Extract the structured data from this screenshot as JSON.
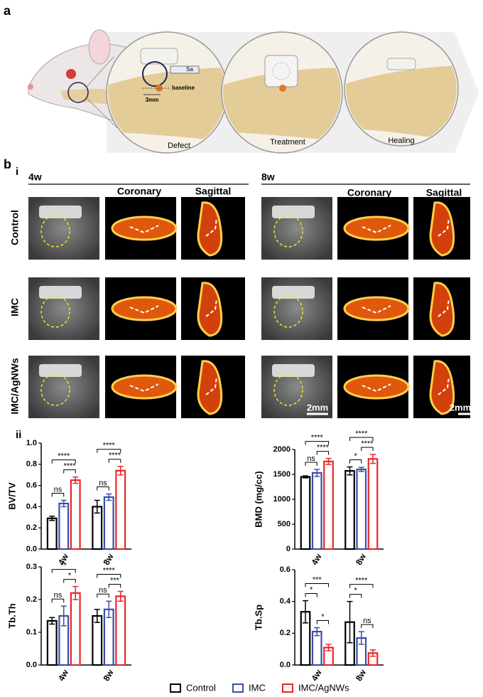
{
  "panel_a": {
    "label": "a",
    "sa": "Sa",
    "baseline": "baseline",
    "scale": "3mm",
    "stages": [
      "Defect",
      "Treatment",
      "Healing"
    ]
  },
  "panel_b": {
    "label": "b",
    "sub_i": "i",
    "sub_ii": "ii",
    "timepoints": [
      "4w",
      "8w"
    ],
    "views": [
      "Coronary",
      "Sagittal"
    ],
    "groups": [
      "Control",
      "IMC",
      "IMC/AgNWs"
    ],
    "scale_bar": "2mm"
  },
  "chart_data": [
    {
      "type": "bar",
      "y_label": "BV/TV",
      "categories": [
        "4w",
        "8w"
      ],
      "ylim": [
        0,
        1
      ],
      "yticks": [
        {
          "value": 0,
          "label": "0.0"
        },
        0.2,
        0.4,
        0.6,
        0.8,
        {
          "value": 1,
          "label": "1.0"
        }
      ],
      "series": [
        {
          "name": "Control",
          "color": "#000000",
          "values": [
            0.29,
            0.4
          ],
          "errors": [
            0.02,
            0.06
          ]
        },
        {
          "name": "IMC",
          "color": "#3a4fa8",
          "values": [
            0.43,
            0.49
          ],
          "errors": [
            0.03,
            0.03
          ]
        },
        {
          "name": "IMC/AgNWs",
          "color": "#e8262a",
          "values": [
            0.65,
            0.74
          ],
          "errors": [
            0.03,
            0.04
          ]
        }
      ],
      "significance": [
        [
          "ns",
          "****",
          "****"
        ],
        [
          "ns",
          "****",
          "****"
        ]
      ]
    },
    {
      "type": "bar",
      "y_label": "BMD (mg/cc)",
      "categories": [
        "4w",
        "8w"
      ],
      "ylim": [
        0,
        2000
      ],
      "yticks": [
        0,
        500,
        1000,
        1500,
        2000
      ],
      "series": [
        {
          "name": "Control",
          "color": "#000000",
          "values": [
            1450,
            1570
          ],
          "errors": [
            20,
            80
          ]
        },
        {
          "name": "IMC",
          "color": "#3a4fa8",
          "values": [
            1530,
            1600
          ],
          "errors": [
            70,
            40
          ]
        },
        {
          "name": "IMC/AgNWs",
          "color": "#e8262a",
          "values": [
            1760,
            1810
          ],
          "errors": [
            60,
            90
          ]
        }
      ],
      "significance": [
        [
          "ns",
          "****",
          "****"
        ],
        [
          "*",
          "****",
          "****"
        ]
      ]
    },
    {
      "type": "bar",
      "y_label": "Tb.Th",
      "categories": [
        "4w",
        "8w"
      ],
      "ylim": [
        0,
        0.3
      ],
      "yticks": [
        {
          "value": 0,
          "label": "0.0"
        },
        0.1,
        0.2,
        0.3
      ],
      "series": [
        {
          "name": "Control",
          "color": "#000000",
          "values": [
            0.135,
            0.15
          ],
          "errors": [
            0.01,
            0.02
          ]
        },
        {
          "name": "IMC",
          "color": "#3a4fa8",
          "values": [
            0.15,
            0.17
          ],
          "errors": [
            0.03,
            0.025
          ]
        },
        {
          "name": "IMC/AgNWs",
          "color": "#e8262a",
          "values": [
            0.22,
            0.21
          ],
          "errors": [
            0.02,
            0.015
          ]
        }
      ],
      "significance": [
        [
          "ns",
          "*",
          "**"
        ],
        [
          "ns",
          "***",
          "****"
        ]
      ]
    },
    {
      "type": "bar",
      "y_label": "Tb.Sp",
      "categories": [
        "4w",
        "8w"
      ],
      "ylim": [
        0,
        0.6
      ],
      "yticks": [
        {
          "value": 0,
          "label": "0.0"
        },
        0.2,
        0.4,
        0.6
      ],
      "series": [
        {
          "name": "Control",
          "color": "#000000",
          "values": [
            0.335,
            0.27
          ],
          "errors": [
            0.07,
            0.13
          ]
        },
        {
          "name": "IMC",
          "color": "#3a4fa8",
          "values": [
            0.21,
            0.17
          ],
          "errors": [
            0.025,
            0.04
          ]
        },
        {
          "name": "IMC/AgNWs",
          "color": "#e8262a",
          "values": [
            0.11,
            0.075
          ],
          "errors": [
            0.02,
            0.02
          ]
        }
      ],
      "significance": [
        [
          "*",
          "*",
          "***"
        ],
        [
          "*",
          "ns",
          "****"
        ]
      ]
    }
  ]
}
